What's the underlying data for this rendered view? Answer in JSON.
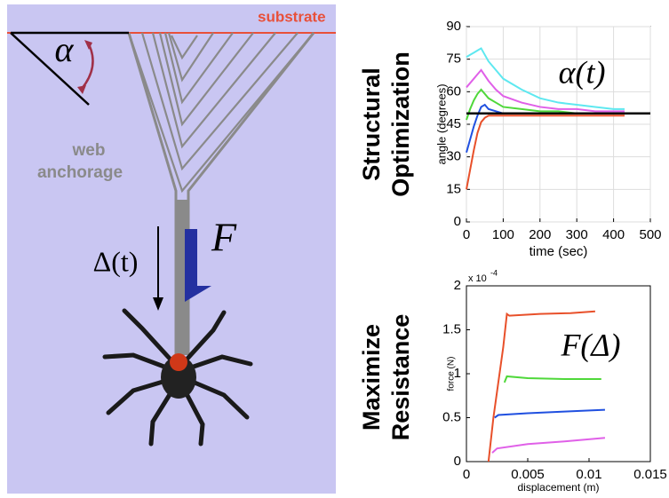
{
  "diagram": {
    "substrate": "substrate",
    "angle_symbol": "α",
    "anchorage_label": [
      "web",
      "anchorage"
    ],
    "displacement_label": "Δ(t)",
    "force_label": "F"
  },
  "chart_data": [
    {
      "type": "line",
      "side_label": [
        "Structural",
        "Optimization"
      ],
      "annotation": "α(t)",
      "x_label": "time  (sec)",
      "y_label": "angle (degrees)",
      "xlim": [
        0,
        500
      ],
      "xticks": [
        0,
        100,
        200,
        300,
        400,
        500
      ],
      "ylim": [
        0,
        90
      ],
      "yticks": [
        0,
        15,
        30,
        45,
        60,
        75,
        90
      ],
      "grid": true,
      "series": [
        {
          "color": "#5ee8f0",
          "x": [
            0,
            10,
            20,
            30,
            40,
            60,
            80,
            100,
            150,
            200,
            250,
            300,
            350,
            400,
            430
          ],
          "values": [
            76,
            77,
            78,
            79,
            80,
            74,
            70,
            66,
            61,
            57,
            55,
            54,
            53,
            52,
            52
          ]
        },
        {
          "color": "#e060e8",
          "x": [
            0,
            10,
            20,
            30,
            40,
            60,
            80,
            100,
            150,
            200,
            250,
            300,
            350,
            400,
            430
          ],
          "values": [
            62,
            64,
            66,
            68,
            70,
            65,
            61,
            58,
            55,
            53,
            52,
            52,
            51,
            51,
            51
          ]
        },
        {
          "color": "#4fd83a",
          "x": [
            0,
            10,
            20,
            30,
            40,
            60,
            80,
            100,
            150,
            200,
            250,
            300,
            350,
            400,
            430
          ],
          "values": [
            47,
            52,
            56,
            59,
            61,
            57,
            55,
            53,
            52,
            51,
            51,
            50,
            50,
            50,
            50
          ]
        },
        {
          "color": "#2050e0",
          "x": [
            0,
            10,
            20,
            30,
            40,
            50,
            60,
            80,
            100,
            150,
            200,
            300,
            430
          ],
          "values": [
            32,
            38,
            44,
            49,
            53,
            54,
            52,
            51,
            50,
            50,
            50,
            50,
            50
          ]
        },
        {
          "color": "#e8502a",
          "x": [
            0,
            10,
            20,
            30,
            40,
            50,
            60,
            80,
            100,
            200,
            300,
            430
          ],
          "values": [
            15,
            24,
            33,
            41,
            46,
            48,
            49,
            49,
            49,
            49,
            49,
            49
          ]
        },
        {
          "color": "#000000",
          "x": [
            0,
            500
          ],
          "values": [
            50,
            50
          ]
        }
      ]
    },
    {
      "type": "line",
      "side_label": [
        "Maximize",
        "Resistance"
      ],
      "annotation": "F(Δ)",
      "x_label": "displacement  (m)",
      "y_label": "force (N)",
      "axis_multiplier": "x 10",
      "axis_multiplier_exponent": "-4",
      "xlim": [
        0,
        0.015
      ],
      "xticks": [
        0,
        0.005,
        0.01,
        0.015
      ],
      "ylim": [
        0,
        2
      ],
      "yticks": [
        0,
        0.5,
        1,
        1.5,
        2
      ],
      "grid": false,
      "series": [
        {
          "color": "#e8502a",
          "x": [
            0.0018,
            0.0022,
            0.0026,
            0.003,
            0.0033,
            0.0035,
            0.006,
            0.0085,
            0.0105
          ],
          "values": [
            0,
            0.5,
            0.9,
            1.3,
            1.68,
            1.66,
            1.68,
            1.69,
            1.71
          ]
        },
        {
          "color": "#4fd83a",
          "x": [
            0.0031,
            0.0033,
            0.005,
            0.008,
            0.011
          ],
          "values": [
            0.9,
            0.97,
            0.95,
            0.94,
            0.94
          ]
        },
        {
          "color": "#2050e0",
          "x": [
            0.0023,
            0.0026,
            0.005,
            0.008,
            0.0113
          ],
          "values": [
            0.5,
            0.53,
            0.55,
            0.57,
            0.59
          ]
        },
        {
          "color": "#e060e8",
          "x": [
            0.0021,
            0.0025,
            0.005,
            0.008,
            0.0113
          ],
          "values": [
            0.1,
            0.15,
            0.2,
            0.23,
            0.27
          ]
        }
      ]
    }
  ]
}
